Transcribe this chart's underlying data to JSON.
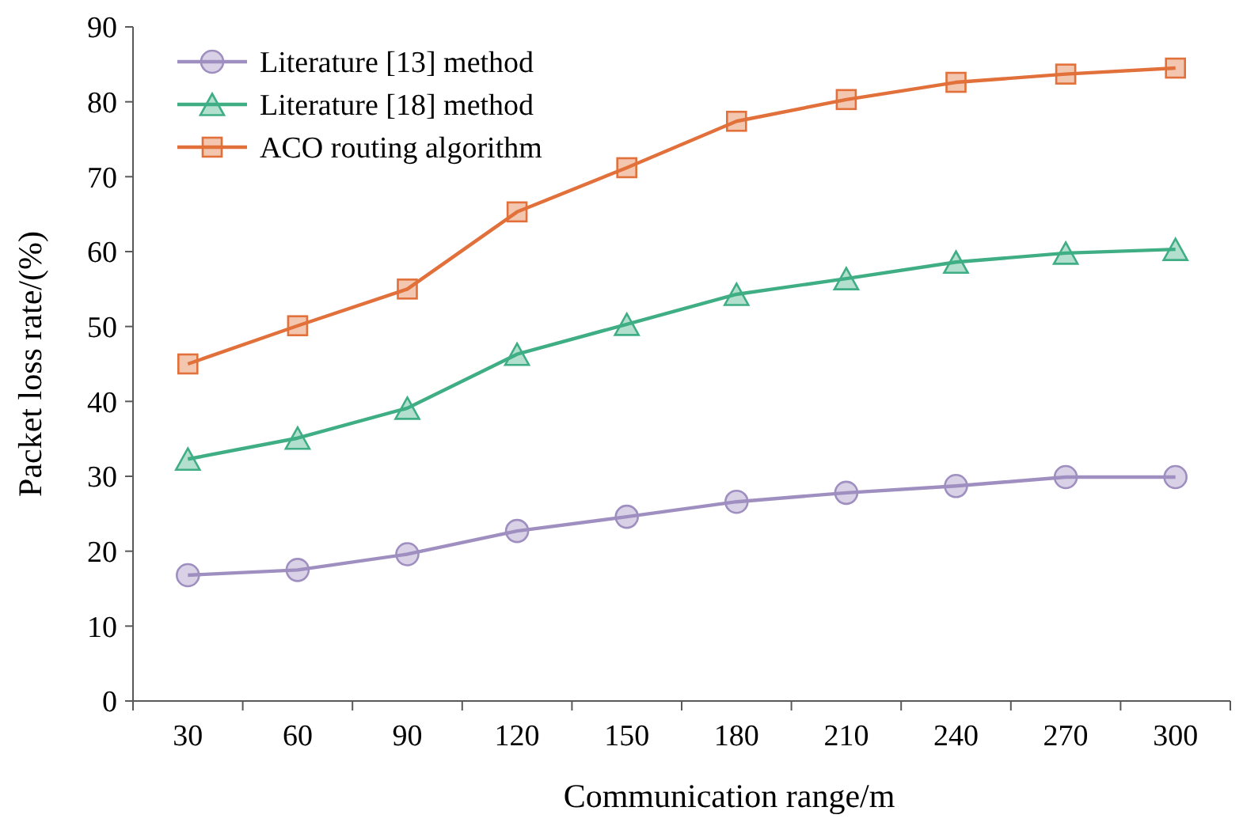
{
  "chart_data": {
    "type": "line",
    "xlabel": "Communication range/m",
    "ylabel": "Packet loss rate/(%)",
    "categories": [
      "30",
      "60",
      "90",
      "120",
      "150",
      "180",
      "210",
      "240",
      "270",
      "300"
    ],
    "series": [
      {
        "name": "Literature [13] method",
        "color": "#9f8fc0",
        "marker": "circle",
        "values": [
          16.8,
          17.5,
          19.6,
          22.7,
          24.6,
          26.6,
          27.8,
          28.7,
          29.9,
          29.9
        ]
      },
      {
        "name": "Literature [18] method",
        "color": "#3fae84",
        "marker": "triangle",
        "values": [
          32.3,
          35.1,
          39.1,
          46.3,
          50.3,
          54.3,
          56.4,
          58.6,
          59.8,
          60.3
        ]
      },
      {
        "name": "ACO routing algorithm",
        "color": "#e2703a",
        "marker": "square",
        "values": [
          45,
          50.1,
          55,
          65.3,
          71.2,
          77.4,
          80.3,
          82.6,
          83.7,
          84.5
        ]
      }
    ],
    "ylim": [
      0,
      90
    ],
    "yticks": [
      0,
      10,
      20,
      30,
      40,
      50,
      60,
      70,
      80,
      90
    ],
    "grid": false,
    "legend": "top left"
  }
}
